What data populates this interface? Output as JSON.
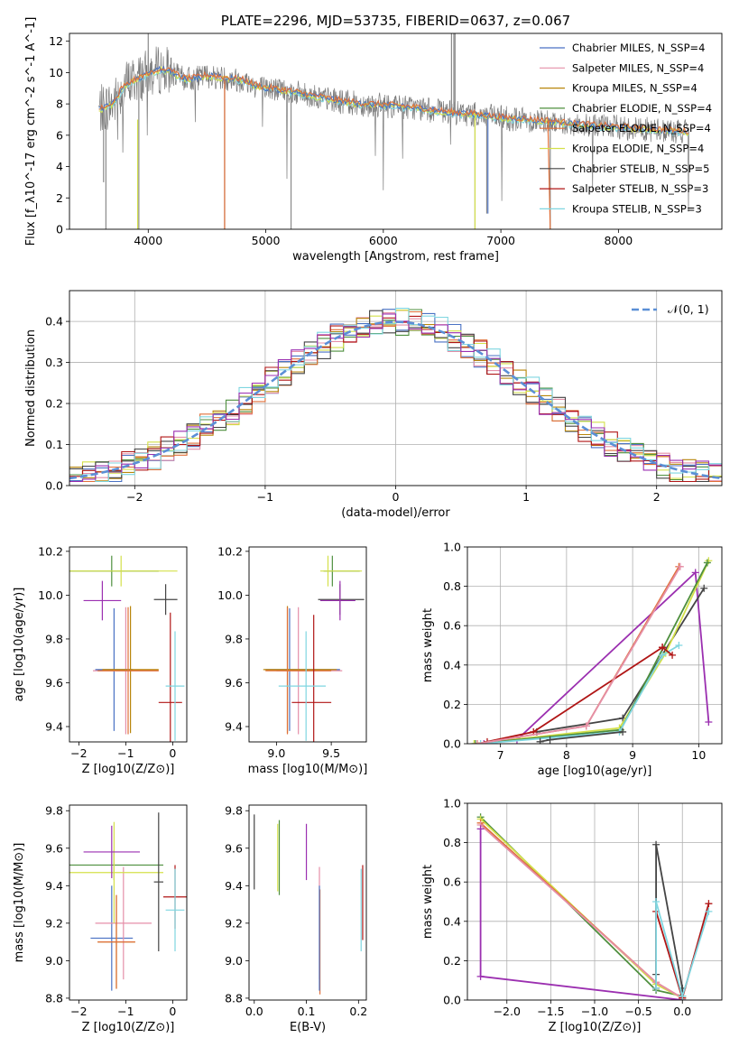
{
  "chart_data": [
    {
      "id": "spectrum",
      "type": "line",
      "title": "PLATE=2296, MJD=53735, FIBERID=0637, z=0.067",
      "xlabel": "wavelength [Angstrom, rest frame]",
      "ylabel": "Flux [f_λ10^-17 erg cm^-2 s^-1 A^-1]",
      "xlim": [
        3330,
        8880
      ],
      "ylim": [
        0,
        12.5
      ],
      "xticks": [
        "4000",
        "5000",
        "6000",
        "7000",
        "8000"
      ],
      "yticks": [
        "0",
        "2",
        "4",
        "6",
        "8",
        "10",
        "12"
      ],
      "grid": false,
      "legend_position": "top-right",
      "series": [
        {
          "name": "Chabrier MILES, N_SSP=4",
          "color": "#4a72c4"
        },
        {
          "name": "Salpeter MILES, N_SSP=4",
          "color": "#e58fa8"
        },
        {
          "name": "Kroupa MILES, N_SSP=4",
          "color": "#b8860b"
        },
        {
          "name": "Chabrier ELODIE, N_SSP=4",
          "color": "#4e8f3e"
        },
        {
          "name": "Salpeter ELODIE, N_SSP=4",
          "color": "#e0703a"
        },
        {
          "name": "Kroupa ELODIE, N_SSP=4",
          "color": "#d4e04a"
        },
        {
          "name": "Chabrier STELIB, N_SSP=5",
          "color": "#444444"
        },
        {
          "name": "Salpeter STELIB, N_SSP=3",
          "color": "#b01515"
        },
        {
          "name": "Kroupa STELIB, N_SSP=3",
          "color": "#7fd6e0"
        }
      ],
      "continuum": {
        "x": [
          3580,
          3700,
          3800,
          3900,
          4000,
          4100,
          4200,
          4300,
          4400,
          4500,
          4600,
          4700,
          4800,
          4900,
          5000,
          5200,
          5400,
          5600,
          5800,
          6000,
          6200,
          6400,
          6600,
          6800,
          7000,
          7200,
          7400,
          7600,
          7800,
          8000,
          8200,
          8400,
          8600
        ],
        "y": [
          7.6,
          8.0,
          9.2,
          9.6,
          9.9,
          10.2,
          10.0,
          9.6,
          9.6,
          9.8,
          9.7,
          9.6,
          9.5,
          9.2,
          9.0,
          8.8,
          8.5,
          8.2,
          8.0,
          7.9,
          7.8,
          7.6,
          7.4,
          7.3,
          7.1,
          7.0,
          6.9,
          6.7,
          6.6,
          6.5,
          6.4,
          6.3,
          6.2
        ]
      }
    },
    {
      "id": "residuals",
      "type": "line",
      "xlabel": "(data-model)/error",
      "ylabel": "Normed distribution",
      "xlim": [
        -2.5,
        2.5
      ],
      "ylim": [
        0,
        0.475
      ],
      "xticks": [
        "−2",
        "−1",
        "0",
        "1",
        "2"
      ],
      "yticks": [
        "0.0",
        "0.1",
        "0.2",
        "0.3",
        "0.4"
      ],
      "grid": true,
      "legend_position": "top-right",
      "reference": {
        "name": "𝒩(0, 1)",
        "color": "#5b8fd6",
        "style": "dashed"
      }
    },
    {
      "id": "age-vs-Z",
      "type": "scatter",
      "xlabel": "Z [log10(Z/Z⊙)]",
      "ylabel": "age [log10(age/yr)]",
      "xlim": [
        -2.2,
        0.3
      ],
      "ylim": [
        9.33,
        10.22
      ],
      "xticks": [
        "−2",
        "−1",
        "0"
      ],
      "yticks": [
        "9.4",
        "9.6",
        "9.8",
        "10.0",
        "10.2"
      ],
      "points": [
        {
          "c": "#4a72c4",
          "x": -1.25,
          "xe": 0.4,
          "y": 9.66,
          "ye": 0.28
        },
        {
          "c": "#e58fa8",
          "x": -1.0,
          "xe": 0.7,
          "y": 9.655,
          "ye": 0.29
        },
        {
          "c": "#b8860b",
          "x": -0.9,
          "xe": 0.6,
          "y": 9.66,
          "ye": 0.29
        },
        {
          "c": "#4e8f3e",
          "x": -1.3,
          "xe": 1.0,
          "y": 10.11,
          "ye": 0.07
        },
        {
          "c": "#e0703a",
          "x": -0.95,
          "xe": 0.65,
          "y": 9.655,
          "ye": 0.29
        },
        {
          "c": "#d4e04a",
          "x": -1.1,
          "xe": 1.2,
          "y": 10.11,
          "ye": 0.07
        },
        {
          "c": "#444444",
          "x": -0.15,
          "xe": 0.25,
          "y": 9.98,
          "ye": 0.07
        },
        {
          "c": "#b01515",
          "x": -0.05,
          "xe": 0.25,
          "y": 9.51,
          "ye": 0.41
        },
        {
          "c": "#7fd6e0",
          "x": 0.05,
          "xe": 0.2,
          "y": 9.585,
          "ye": 0.25
        },
        {
          "c": "#9b2fb0",
          "x": -1.5,
          "xe": 0.4,
          "y": 9.975,
          "ye": 0.09
        }
      ]
    },
    {
      "id": "age-vs-mass",
      "type": "scatter",
      "xlabel": "mass [log10(M/M⊙)]",
      "ylabel": "",
      "xlim": [
        8.75,
        9.82
      ],
      "ylim": [
        9.33,
        10.22
      ],
      "xticks": [
        "9.0",
        "9.5"
      ],
      "yticks": [
        "9.4",
        "9.6",
        "9.8",
        "10.0",
        "10.2"
      ],
      "points": [
        {
          "c": "#4a72c4",
          "x": 9.12,
          "y": 9.66,
          "ye": 0.28,
          "xl": 8.9,
          "xr": 9.58
        },
        {
          "c": "#e58fa8",
          "x": 9.2,
          "y": 9.655,
          "ye": 0.29,
          "xl": 9.0,
          "xr": 9.6
        },
        {
          "c": "#b8860b",
          "x": 9.1,
          "y": 9.66,
          "ye": 0.29,
          "xl": 8.88,
          "xr": 9.55
        },
        {
          "c": "#4e8f3e",
          "x": 9.51,
          "y": 10.11,
          "ye": 0.07,
          "xl": 9.43,
          "xr": 9.76
        },
        {
          "c": "#e0703a",
          "x": 9.1,
          "y": 9.655,
          "ye": 0.29,
          "xl": 8.9,
          "xr": 9.5
        },
        {
          "c": "#d4e04a",
          "x": 9.47,
          "y": 10.11,
          "ye": 0.07,
          "xl": 9.4,
          "xr": 9.78
        },
        {
          "c": "#444444",
          "x": 9.58,
          "y": 9.98,
          "ye": 0.07,
          "xl": 9.38,
          "xr": 9.8
        },
        {
          "c": "#b01515",
          "x": 9.34,
          "y": 9.51,
          "ye": 0.4,
          "xl": 9.14,
          "xr": 9.5
        },
        {
          "c": "#7fd6e0",
          "x": 9.27,
          "y": 9.585,
          "ye": 0.25,
          "xl": 9.02,
          "xr": 9.45
        },
        {
          "c": "#9b2fb0",
          "x": 9.58,
          "y": 9.975,
          "ye": 0.09,
          "xl": 9.4,
          "xr": 9.72
        }
      ]
    },
    {
      "id": "mass-weight-vs-age",
      "type": "line",
      "xlabel": "age [log10(age/yr)]",
      "ylabel": "mass weight",
      "xlim": [
        6.5,
        10.35
      ],
      "ylim": [
        0,
        1.0
      ],
      "xticks": [
        "7",
        "8",
        "9",
        "10"
      ],
      "yticks": [
        "0.0",
        "0.2",
        "0.4",
        "0.6",
        "0.8",
        "1.0"
      ],
      "grid": true,
      "series": [
        {
          "c": "#9b2fb0",
          "x": [
            6.75,
            7.25,
            9.95,
            10.15
          ],
          "y": [
            0.0,
            0.02,
            0.87,
            0.11
          ]
        },
        {
          "c": "#444444",
          "x": [
            7.55,
            8.85,
            10.08
          ],
          "y": [
            0.06,
            0.13,
            0.79
          ]
        },
        {
          "c": "#b01515",
          "x": [
            6.8,
            7.5,
            9.45
          ],
          "y": [
            0.01,
            0.06,
            0.49
          ]
        },
        {
          "c": "#d4e04a",
          "x": [
            6.6,
            8.8,
            9.5,
            10.15
          ],
          "y": [
            0.0,
            0.08,
            0.46,
            0.93
          ]
        },
        {
          "c": "#4e8f3e",
          "x": [
            6.62,
            8.82,
            10.13
          ],
          "y": [
            0.0,
            0.07,
            0.92
          ]
        },
        {
          "c": "#7fd6e0",
          "x": [
            6.7,
            8.8,
            9.45,
            9.7
          ],
          "y": [
            0.0,
            0.06,
            0.45,
            0.5
          ]
        },
        {
          "c": "#e0703a",
          "x": [
            6.65,
            8.3,
            9.7
          ],
          "y": [
            0.0,
            0.09,
            0.9
          ]
        },
        {
          "c": "#e58fa8",
          "x": [
            6.65,
            8.3,
            9.72
          ],
          "y": [
            0.0,
            0.09,
            0.9
          ]
        },
        {
          "c": "#444444",
          "x": [
            7.6,
            7.75,
            8.85
          ],
          "y": [
            0.01,
            0.02,
            0.06
          ]
        },
        {
          "c": "#b01515",
          "x": [
            9.45,
            9.6
          ],
          "y": [
            0.49,
            0.45
          ]
        }
      ]
    },
    {
      "id": "mass-vs-Z",
      "type": "scatter",
      "xlabel": "Z [log10(Z/Z⊙)]",
      "ylabel": "mass [log10(M/M⊙)]",
      "xlim": [
        -2.2,
        0.3
      ],
      "ylim": [
        8.79,
        9.83
      ],
      "xticks": [
        "−2",
        "−1",
        "0"
      ],
      "yticks": [
        "8.8",
        "9.0",
        "9.2",
        "9.4",
        "9.6",
        "9.8"
      ],
      "points": [
        {
          "c": "#4a72c4",
          "x": -1.3,
          "xe": 0.45,
          "y": 9.12,
          "ye": 0.28
        },
        {
          "c": "#e58fa8",
          "x": -1.05,
          "xe": 0.6,
          "y": 9.2,
          "ye": 0.3
        },
        {
          "c": "#b8860b",
          "x": -1.2,
          "xe": 0.4,
          "y": 9.1,
          "ye": 0.25
        },
        {
          "c": "#4e8f3e",
          "x": -1.25,
          "xe": 1.05,
          "y": 9.51,
          "ye": 0.08
        },
        {
          "c": "#e0703a",
          "x": -1.2,
          "xe": 0.4,
          "y": 9.1,
          "ye": 0.25
        },
        {
          "c": "#d4e04a",
          "x": -1.25,
          "xe": 1.05,
          "y": 9.47,
          "ye": 0.27
        },
        {
          "c": "#444444",
          "x": -0.3,
          "xe": 0.1,
          "y": 9.42,
          "ye": 0.37
        },
        {
          "c": "#b01515",
          "x": 0.05,
          "xe": 0.25,
          "y": 9.34,
          "ye": 0.17
        },
        {
          "c": "#7fd6e0",
          "x": 0.05,
          "xe": 0.2,
          "y": 9.27,
          "ye": 0.22
        },
        {
          "c": "#9b2fb0",
          "x": -1.3,
          "xe": 0.6,
          "y": 9.58,
          "ye": 0.14
        }
      ]
    },
    {
      "id": "mass-vs-EBV",
      "type": "scatter",
      "xlabel": "E(B-V)",
      "ylabel": "",
      "xlim": [
        -0.01,
        0.215
      ],
      "ylim": [
        8.79,
        9.83
      ],
      "xticks": [
        "0.0",
        "0.1",
        "0.2"
      ],
      "yticks": [
        "8.8",
        "9.0",
        "9.2",
        "9.4",
        "9.6",
        "9.8"
      ],
      "points": [
        {
          "c": "#444444",
          "x": 0.0,
          "y": 9.58,
          "ye": 0.2
        },
        {
          "c": "#4e8f3e",
          "x": 0.048,
          "y": 9.55,
          "ye": 0.2
        },
        {
          "c": "#d4e04a",
          "x": 0.045,
          "y": 9.55,
          "ye": 0.18
        },
        {
          "c": "#9b2fb0",
          "x": 0.1,
          "y": 9.58,
          "ye": 0.15
        },
        {
          "c": "#e58fa8",
          "x": 0.125,
          "y": 9.2,
          "ye": 0.3
        },
        {
          "c": "#e0703a",
          "x": 0.126,
          "y": 9.1,
          "ye": 0.28
        },
        {
          "c": "#4a72c4",
          "x": 0.125,
          "y": 9.12,
          "ye": 0.28
        },
        {
          "c": "#b01515",
          "x": 0.208,
          "y": 9.31,
          "ye": 0.2
        },
        {
          "c": "#7fd6e0",
          "x": 0.205,
          "y": 9.27,
          "ye": 0.22
        }
      ]
    },
    {
      "id": "mass-weight-vs-Z",
      "type": "line",
      "xlabel": "Z [log10(Z/Z⊙)]",
      "ylabel": "mass weight",
      "xlim": [
        -2.45,
        0.45
      ],
      "ylim": [
        0,
        1.0
      ],
      "xticks": [
        "−2.0",
        "−1.5",
        "−1.0",
        "−0.5",
        "0.0"
      ],
      "yticks": [
        "0.0",
        "0.2",
        "0.4",
        "0.6",
        "0.8",
        "1.0"
      ],
      "grid": true,
      "series": [
        {
          "c": "#4e8f3e",
          "x": [
            -2.3,
            -0.3,
            0.0
          ],
          "y": [
            0.93,
            0.05,
            0.02
          ]
        },
        {
          "c": "#d4e04a",
          "x": [
            -2.3,
            -0.3,
            0.0
          ],
          "y": [
            0.92,
            0.08,
            0.01
          ]
        },
        {
          "c": "#e0703a",
          "x": [
            -2.3,
            -0.3,
            0.0
          ],
          "y": [
            0.9,
            0.09,
            0.01
          ]
        },
        {
          "c": "#e58fa8",
          "x": [
            -2.3,
            -0.3,
            0.0
          ],
          "y": [
            0.89,
            0.09,
            0.01
          ]
        },
        {
          "c": "#9b2fb0",
          "x": [
            -2.3,
            -2.3,
            0.0
          ],
          "y": [
            0.87,
            0.12,
            0.0
          ]
        },
        {
          "c": "#444444",
          "x": [
            -0.3,
            -0.3,
            0.0,
            0.0
          ],
          "y": [
            0.13,
            0.79,
            0.06,
            0.0
          ]
        },
        {
          "c": "#b01515",
          "x": [
            -0.3,
            -0.3,
            0.0,
            0.3
          ],
          "y": [
            0.06,
            0.45,
            0.01,
            0.49
          ]
        },
        {
          "c": "#7fd6e0",
          "x": [
            -0.3,
            -0.3,
            0.0,
            0.3
          ],
          "y": [
            0.06,
            0.5,
            0.02,
            0.45
          ]
        }
      ]
    }
  ]
}
